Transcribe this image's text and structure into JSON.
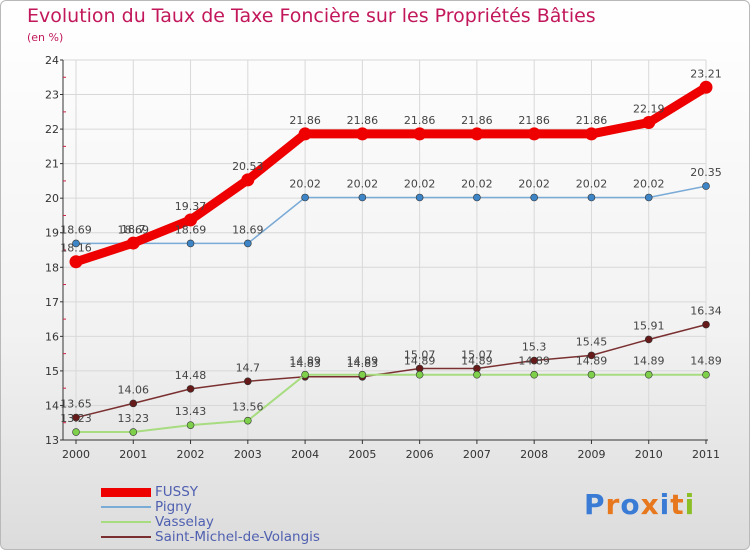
{
  "header": {
    "title": "Evolution du Taux de Taxe Foncière sur les Propriétés Bâties",
    "unit": "(en %)"
  },
  "logo": {
    "letters": [
      "P",
      "r",
      "o",
      "x",
      "i",
      "t",
      "i"
    ]
  },
  "colors": {
    "title": "#c2185b",
    "axis": "#333333",
    "grid": "#d8d8d8",
    "tick_minor": "#cc2244",
    "legend_text": "#5060b0",
    "logo_letters": [
      "#3a7bd5",
      "#e8781e",
      "#3a7bd5",
      "#e8781e",
      "#3a7bd5",
      "#e8781e",
      "#8cbf26"
    ]
  },
  "chart_data": {
    "type": "line",
    "title": "Evolution du Taux de Taxe Foncière sur les Propriétés Bâties",
    "ylabel": "(en %)",
    "xlabel": "",
    "x": [
      "2000",
      "2001",
      "2002",
      "2003",
      "2004",
      "2005",
      "2006",
      "2007",
      "2008",
      "2009",
      "2010",
      "2011"
    ],
    "ylim": [
      13,
      24
    ],
    "yticks": [
      "13",
      "14",
      "15",
      "16",
      "17",
      "18",
      "19",
      "20",
      "21",
      "22",
      "23",
      "24"
    ],
    "grid": true,
    "legend_position": "bottom-left",
    "series": [
      {
        "name": "FUSSY",
        "color": "#ee0000",
        "values": [
          18.16,
          18.7,
          19.37,
          20.53,
          21.86,
          21.86,
          21.86,
          21.86,
          21.86,
          21.86,
          22.19,
          23.21
        ],
        "labels": [
          "18.16",
          "18.7",
          "19.37",
          "20.53",
          "21.86",
          "21.86",
          "21.86",
          "21.86",
          "21.86",
          "21.86",
          "22.19",
          "23.21"
        ]
      },
      {
        "name": "Pigny",
        "color": "#7aaad6",
        "marker": "#3d85c6",
        "values": [
          18.69,
          18.69,
          18.69,
          18.69,
          20.02,
          20.02,
          20.02,
          20.02,
          20.02,
          20.02,
          20.02,
          20.35
        ],
        "labels": [
          "18.69",
          "18.69",
          "18.69",
          "18.69",
          "20.02",
          "20.02",
          "20.02",
          "20.02",
          "20.02",
          "20.02",
          "20.02",
          "20.35"
        ]
      },
      {
        "name": "Vasselay",
        "color": "#a8dc80",
        "marker": "#7ed04b",
        "values": [
          13.23,
          13.23,
          13.43,
          13.56,
          14.89,
          14.89,
          14.89,
          14.89,
          14.89,
          14.89,
          14.89,
          14.89
        ],
        "labels": [
          "13.23",
          "13.23",
          "13.43",
          "13.56",
          "14.89",
          "14.89",
          "14.89",
          "14.89",
          "14.89",
          "14.89",
          "14.89",
          "14.89"
        ]
      },
      {
        "name": "Saint-Michel-de-Volangis",
        "color": "#7a3030",
        "marker": "#661a1a",
        "values": [
          13.65,
          14.06,
          14.48,
          14.7,
          14.83,
          14.83,
          15.07,
          15.07,
          15.3,
          15.45,
          15.91,
          16.34
        ],
        "labels": [
          "13.65",
          "14.06",
          "14.48",
          "14.7",
          "14.83",
          "14.83",
          "15.07",
          "15.07",
          "15.3",
          "15.45",
          "15.91",
          "16.34"
        ]
      }
    ]
  }
}
